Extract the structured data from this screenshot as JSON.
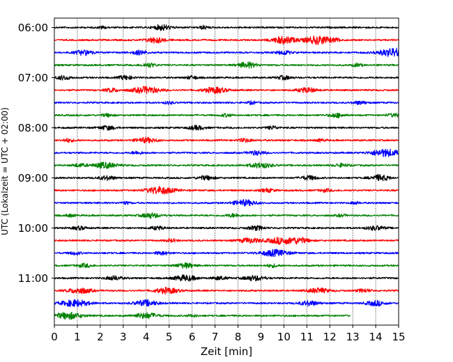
{
  "chart_data": {
    "type": "line",
    "title": "",
    "xlabel": "Zeit  [min]",
    "ylabel": "UTC (Lokalzeit = UTC + 02:00)",
    "xlim": [
      0,
      15
    ],
    "x_ticks": [
      "0",
      "1",
      "2",
      "3",
      "4",
      "5",
      "6",
      "7",
      "8",
      "9",
      "10",
      "11",
      "12",
      "13",
      "14",
      "15"
    ],
    "y_ticks": [
      "06:00",
      "07:00",
      "08:00",
      "09:00",
      "10:00",
      "11:00"
    ],
    "grid": "vertical-dotted",
    "legend": "none",
    "trace_interval_minutes": 15,
    "start_time": "06:00",
    "trace_colors": [
      "#000000",
      "#ff0000",
      "#0000ff",
      "#008000"
    ],
    "traces": [
      {
        "time": "06:00",
        "end_minute": 15,
        "events": [
          [
            4.7,
            0.35,
            0.7
          ],
          [
            6.5,
            0.2,
            0.4
          ],
          [
            2.1,
            0.15,
            0.3
          ]
        ]
      },
      {
        "time": "06:15",
        "end_minute": 15,
        "events": [
          [
            4.4,
            0.4,
            0.7
          ],
          [
            10.0,
            0.5,
            0.9
          ],
          [
            11.5,
            0.6,
            1.0
          ],
          [
            12.3,
            0.2,
            0.3
          ]
        ]
      },
      {
        "time": "06:30",
        "end_minute": 15,
        "events": [
          [
            1.3,
            0.4,
            0.6
          ],
          [
            3.7,
            0.35,
            0.5
          ],
          [
            10.0,
            0.3,
            0.5
          ],
          [
            14.8,
            0.7,
            1.0
          ]
        ]
      },
      {
        "time": "06:45",
        "end_minute": 15,
        "events": [
          [
            4.1,
            0.3,
            0.5
          ],
          [
            8.4,
            0.4,
            0.7
          ],
          [
            13.2,
            0.2,
            0.4
          ]
        ]
      },
      {
        "time": "07:00",
        "end_minute": 15,
        "events": [
          [
            0.4,
            0.3,
            0.5
          ],
          [
            3.1,
            0.3,
            0.5
          ],
          [
            6.0,
            0.25,
            0.4
          ],
          [
            10.0,
            0.3,
            0.45
          ]
        ]
      },
      {
        "time": "07:15",
        "end_minute": 15,
        "events": [
          [
            2.5,
            0.3,
            0.45
          ],
          [
            4.0,
            0.6,
            0.8
          ],
          [
            7.0,
            0.5,
            0.7
          ],
          [
            11.0,
            0.4,
            0.6
          ]
        ]
      },
      {
        "time": "07:30",
        "end_minute": 15,
        "events": [
          [
            5.0,
            0.2,
            0.3
          ],
          [
            8.6,
            0.2,
            0.35
          ],
          [
            13.3,
            0.3,
            0.4
          ]
        ]
      },
      {
        "time": "07:45",
        "end_minute": 15,
        "events": [
          [
            2.3,
            0.25,
            0.35
          ],
          [
            7.5,
            0.25,
            0.35
          ],
          [
            12.3,
            0.35,
            0.5
          ],
          [
            14.8,
            0.3,
            0.4
          ]
        ]
      },
      {
        "time": "08:00",
        "end_minute": 15,
        "events": [
          [
            2.3,
            0.35,
            0.5
          ],
          [
            6.2,
            0.35,
            0.5
          ],
          [
            9.5,
            0.25,
            0.4
          ]
        ]
      },
      {
        "time": "08:15",
        "end_minute": 15,
        "events": [
          [
            0.6,
            0.25,
            0.4
          ],
          [
            4.0,
            0.45,
            0.6
          ],
          [
            8.3,
            0.3,
            0.4
          ],
          [
            11.6,
            0.2,
            0.3
          ]
        ]
      },
      {
        "time": "08:30",
        "end_minute": 15,
        "events": [
          [
            3.6,
            0.25,
            0.35
          ],
          [
            8.8,
            0.35,
            0.5
          ],
          [
            14.4,
            0.6,
            0.9
          ]
        ]
      },
      {
        "time": "08:45",
        "end_minute": 15,
        "events": [
          [
            1.1,
            0.3,
            0.4
          ],
          [
            2.2,
            0.5,
            0.7
          ],
          [
            9.0,
            0.5,
            0.6
          ],
          [
            12.5,
            0.3,
            0.4
          ]
        ]
      },
      {
        "time": "09:00",
        "end_minute": 15,
        "events": [
          [
            2.3,
            0.35,
            0.5
          ],
          [
            6.6,
            0.35,
            0.5
          ],
          [
            11.1,
            0.35,
            0.5
          ],
          [
            14.2,
            0.4,
            0.7
          ]
        ]
      },
      {
        "time": "09:15",
        "end_minute": 15,
        "events": [
          [
            4.6,
            0.6,
            0.9
          ],
          [
            9.3,
            0.3,
            0.4
          ],
          [
            11.8,
            0.25,
            0.35
          ]
        ]
      },
      {
        "time": "09:30",
        "end_minute": 15,
        "events": [
          [
            3.1,
            0.2,
            0.3
          ],
          [
            8.3,
            0.5,
            0.7
          ],
          [
            13.1,
            0.2,
            0.3
          ]
        ]
      },
      {
        "time": "09:45",
        "end_minute": 15,
        "events": [
          [
            0.7,
            0.2,
            0.3
          ],
          [
            4.2,
            0.4,
            0.6
          ],
          [
            7.8,
            0.3,
            0.4
          ],
          [
            12.5,
            0.2,
            0.3
          ]
        ]
      },
      {
        "time": "10:00",
        "end_minute": 15,
        "events": [
          [
            1.1,
            0.3,
            0.4
          ],
          [
            4.5,
            0.3,
            0.4
          ],
          [
            8.8,
            0.35,
            0.5
          ],
          [
            14.0,
            0.4,
            0.5
          ]
        ]
      },
      {
        "time": "10:15",
        "end_minute": 15,
        "events": [
          [
            5.1,
            0.25,
            0.35
          ],
          [
            8.5,
            0.45,
            0.6
          ],
          [
            9.9,
            0.6,
            0.8
          ],
          [
            10.7,
            0.4,
            0.6
          ]
        ]
      },
      {
        "time": "10:30",
        "end_minute": 15,
        "events": [
          [
            0.9,
            0.25,
            0.35
          ],
          [
            4.7,
            0.3,
            0.4
          ],
          [
            9.6,
            0.6,
            0.8
          ]
        ]
      },
      {
        "time": "10:45",
        "end_minute": 15,
        "events": [
          [
            1.3,
            0.3,
            0.45
          ],
          [
            5.7,
            0.4,
            0.6
          ],
          [
            9.5,
            0.25,
            0.35
          ]
        ]
      },
      {
        "time": "11:00",
        "end_minute": 15,
        "events": [
          [
            2.6,
            0.35,
            0.5
          ],
          [
            5.7,
            0.5,
            0.7
          ],
          [
            7.2,
            0.3,
            0.4
          ],
          [
            8.7,
            0.45,
            0.6
          ]
        ]
      },
      {
        "time": "11:15",
        "end_minute": 15,
        "events": [
          [
            1.1,
            0.5,
            0.7
          ],
          [
            4.9,
            0.5,
            0.7
          ],
          [
            11.5,
            0.45,
            0.6
          ],
          [
            13.5,
            0.3,
            0.4
          ]
        ]
      },
      {
        "time": "11:30",
        "end_minute": 15,
        "events": [
          [
            0.9,
            0.6,
            0.8
          ],
          [
            4.0,
            0.5,
            0.7
          ],
          [
            11.1,
            0.4,
            0.6
          ],
          [
            14.0,
            0.4,
            0.6
          ]
        ]
      },
      {
        "time": "11:45",
        "end_minute": 12.9,
        "events": [
          [
            0.6,
            0.6,
            0.8
          ],
          [
            4.0,
            0.5,
            0.7
          ],
          [
            6.0,
            0.2,
            0.3
          ]
        ]
      }
    ]
  }
}
